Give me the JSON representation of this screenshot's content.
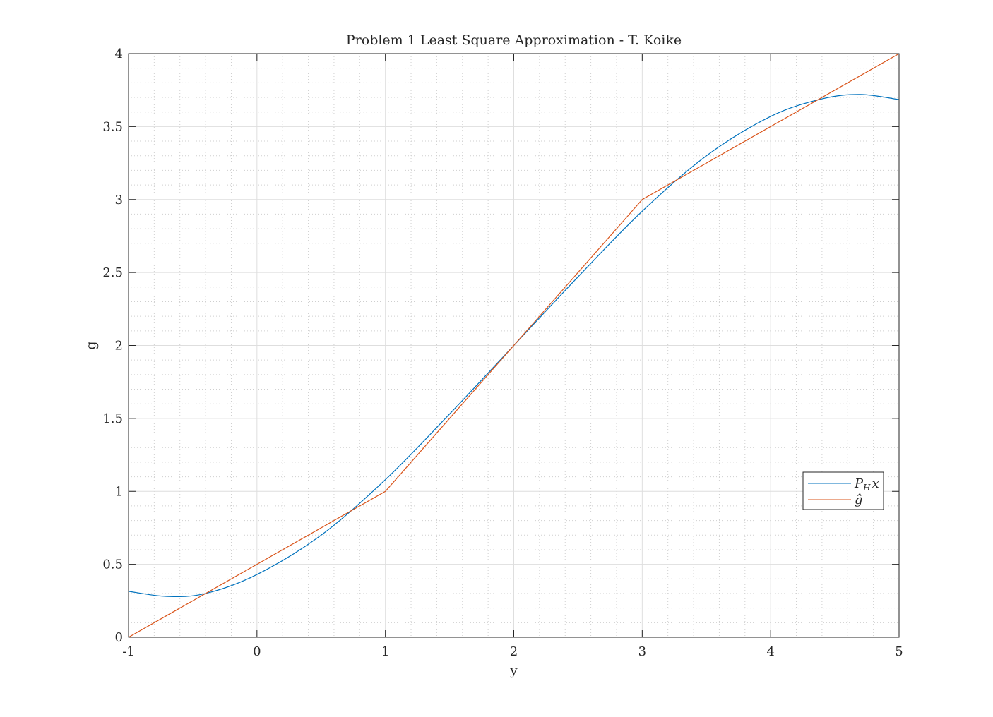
{
  "chart_data": {
    "type": "line",
    "title": "Problem 1 Least Square Approximation - T. Koike",
    "xlabel": "y",
    "ylabel": "g",
    "xlim": [
      -1,
      5
    ],
    "ylim": [
      0,
      4
    ],
    "x_ticks": [
      -1,
      0,
      1,
      2,
      3,
      4,
      5
    ],
    "x_tick_labels": [
      "-1",
      "0",
      "1",
      "2",
      "3",
      "4",
      "5"
    ],
    "y_ticks": [
      0,
      0.5,
      1,
      1.5,
      2,
      2.5,
      3,
      3.5,
      4
    ],
    "y_tick_labels": [
      "0",
      "0.5",
      "1",
      "1.5",
      "2",
      "2.5",
      "3",
      "3.5",
      "4"
    ],
    "grid": true,
    "minor_grid": true,
    "legend_position": "right, lower-middle",
    "series": [
      {
        "name": "P_H x",
        "legend_main": "P",
        "legend_sub": "H",
        "legend_tail": "x",
        "color": "#0072BD",
        "x": [
          -1,
          -0.7,
          -0.4,
          0,
          0.5,
          1,
          1.5,
          2,
          2.5,
          3,
          3.5,
          4,
          4.4,
          4.7,
          5
        ],
        "y": [
          0.315,
          0.28,
          0.3,
          0.43,
          0.7,
          1.08,
          1.53,
          2.0,
          2.47,
          2.92,
          3.3,
          3.57,
          3.69,
          3.72,
          3.685
        ]
      },
      {
        "name": "ĝ",
        "legend_main": "ĝ",
        "legend_sub": "",
        "legend_tail": "",
        "color": "#D95319",
        "x": [
          -1,
          1,
          3,
          5
        ],
        "y": [
          0,
          1,
          3,
          4
        ]
      }
    ]
  }
}
